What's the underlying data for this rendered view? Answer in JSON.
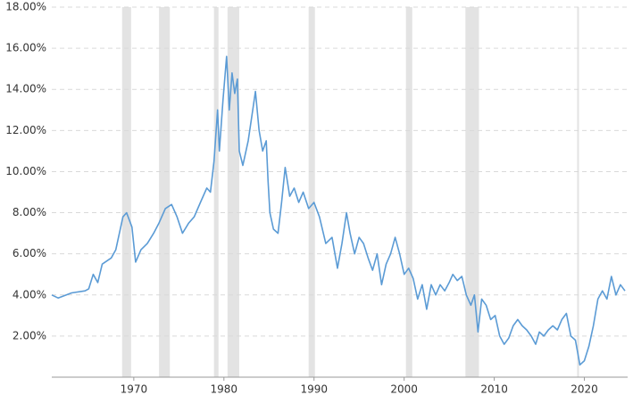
{
  "chart_data": {
    "type": "line",
    "x": [
      1960.9,
      1961.6,
      1963.1,
      1964.6,
      1965.0,
      1965.5,
      1966.0,
      1966.5,
      1967.5,
      1968.0,
      1968.8,
      1969.2,
      1969.8,
      1970.2,
      1970.8,
      1971.5,
      1972.2,
      1972.8,
      1973.5,
      1974.2,
      1974.8,
      1975.4,
      1976.1,
      1976.7,
      1977.4,
      1978.1,
      1978.5,
      1978.9,
      1979.3,
      1979.5,
      1979.9,
      1980.3,
      1980.6,
      1980.9,
      1981.2,
      1981.5,
      1981.7,
      1982.1,
      1982.7,
      1983.2,
      1983.5,
      1983.9,
      1984.3,
      1984.7,
      1984.9,
      1985.1,
      1985.5,
      1986.0,
      1986.4,
      1986.8,
      1987.3,
      1987.8,
      1988.3,
      1988.8,
      1989.4,
      1990.0,
      1990.6,
      1991.3,
      1992.0,
      1992.6,
      1993.1,
      1993.6,
      1994.0,
      1994.5,
      1995.0,
      1995.5,
      1996.0,
      1996.5,
      1997.0,
      1997.5,
      1998.0,
      1998.5,
      1999.0,
      1999.5,
      2000.0,
      2000.5,
      2001.0,
      2001.5,
      2002.0,
      2002.5,
      2003.0,
      2003.5,
      2004.0,
      2004.5,
      2005.0,
      2005.4,
      2005.9,
      2006.4,
      2006.9,
      2007.4,
      2007.8,
      2008.2,
      2008.6,
      2009.1,
      2009.6,
      2010.1,
      2010.6,
      2011.1,
      2011.6,
      2012.1,
      2012.6,
      2013.1,
      2013.6,
      2014.1,
      2014.6,
      2015.0,
      2015.5,
      2016.0,
      2016.5,
      2017.0,
      2017.5,
      2018.0,
      2018.5,
      2019.0,
      2019.5,
      2020.0,
      2020.5,
      2021.0,
      2021.5,
      2022.0,
      2022.5,
      2023.0,
      2023.5,
      2024.0,
      2024.5
    ],
    "series": [
      {
        "color": "#5b9bd5",
        "values": [
          4.0,
          3.85,
          4.1,
          4.2,
          4.3,
          5.0,
          4.6,
          5.5,
          5.8,
          6.2,
          7.8,
          8.0,
          7.3,
          5.6,
          6.2,
          6.5,
          7.0,
          7.5,
          8.2,
          8.4,
          7.8,
          7.0,
          7.5,
          7.8,
          8.5,
          9.2,
          9.0,
          10.5,
          13.0,
          11.0,
          13.5,
          15.6,
          13.0,
          14.8,
          13.8,
          14.5,
          11.0,
          10.3,
          11.5,
          13.0,
          13.9,
          12.0,
          11.0,
          11.5,
          9.5,
          8.0,
          7.2,
          7.0,
          8.5,
          10.2,
          8.8,
          9.2,
          8.5,
          9.0,
          8.2,
          8.5,
          7.8,
          6.5,
          6.8,
          5.3,
          6.5,
          8.0,
          7.0,
          6.0,
          6.8,
          6.5,
          5.8,
          5.2,
          6.0,
          4.5,
          5.5,
          6.0,
          6.8,
          6.0,
          5.0,
          5.3,
          4.8,
          3.8,
          4.5,
          3.3,
          4.5,
          4.0,
          4.5,
          4.2,
          4.6,
          5.0,
          4.7,
          4.9,
          4.0,
          3.5,
          4.0,
          2.2,
          3.8,
          3.5,
          2.8,
          3.0,
          2.0,
          1.6,
          1.9,
          2.5,
          2.8,
          2.5,
          2.3,
          2.0,
          1.6,
          2.2,
          2.0,
          2.3,
          2.5,
          2.3,
          2.8,
          3.1,
          2.0,
          1.8,
          0.6,
          0.8,
          1.5,
          2.5,
          3.8,
          4.2,
          3.8,
          4.9,
          4.0,
          4.5,
          4.2
        ]
      }
    ],
    "recessions": [
      [
        1968.7,
        1969.7
      ],
      [
        1972.8,
        1974.0
      ],
      [
        1978.9,
        1979.4
      ],
      [
        1980.4,
        1981.7
      ],
      [
        1989.4,
        1990.1
      ],
      [
        2000.2,
        2000.9
      ],
      [
        2006.8,
        2008.3
      ],
      [
        2019.2,
        2019.4
      ]
    ],
    "recession_color": "#e3e3e3",
    "xlim": [
      1960.9,
      2024.8
    ],
    "xticks": [
      1970,
      1980,
      1990,
      2000,
      2010,
      2020
    ],
    "ylim": [
      0,
      18
    ],
    "yticks": [
      {
        "value": 2,
        "label": "2.00%"
      },
      {
        "value": 4,
        "label": "4.00%"
      },
      {
        "value": 6,
        "label": "6.00%"
      },
      {
        "value": 8,
        "label": "8.00%"
      },
      {
        "value": 10,
        "label": "10.00%"
      },
      {
        "value": 12,
        "label": "12.00%"
      },
      {
        "value": 14,
        "label": "14.00%"
      },
      {
        "value": 16,
        "label": "16.00%"
      },
      {
        "value": 18,
        "label": "18.00%"
      }
    ],
    "grid": true
  }
}
